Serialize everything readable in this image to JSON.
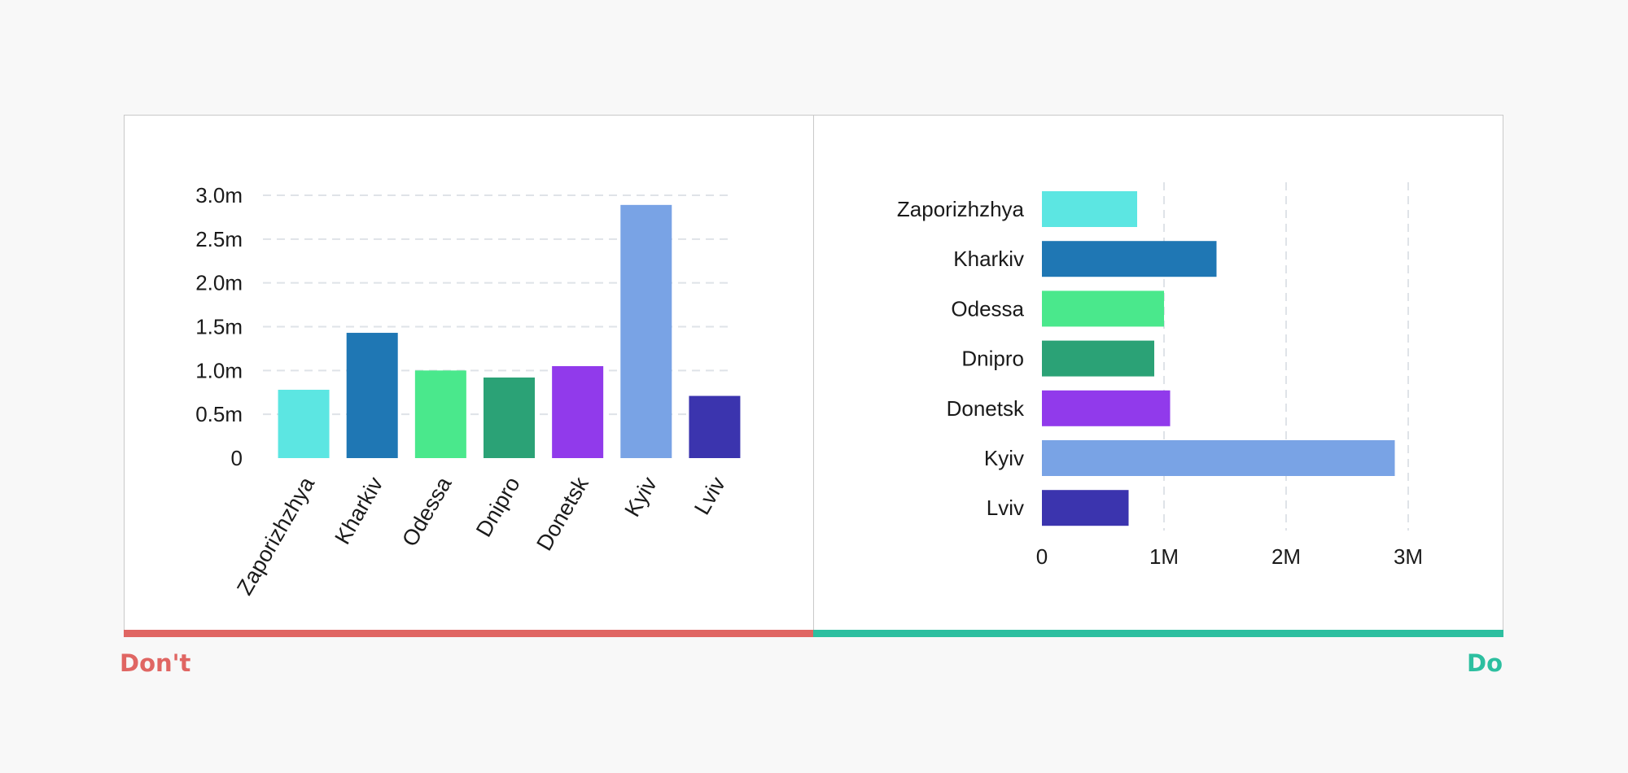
{
  "chart_data": [
    {
      "type": "bar",
      "orientation": "vertical",
      "categories": [
        "Zaporizhzhya",
        "Kharkiv",
        "Odessa",
        "Dnipro",
        "Donetsk",
        "Kyiv",
        "Lviv"
      ],
      "values": [
        0.78,
        1.43,
        1.0,
        0.92,
        1.05,
        2.89,
        0.71
      ],
      "ylim": [
        0,
        3.0
      ],
      "yticks": [
        0,
        0.5,
        1.0,
        1.5,
        2.0,
        2.5,
        3.0
      ],
      "ytick_labels": [
        "0",
        "0.5m",
        "1.0m",
        "1.5m",
        "2.0m",
        "2.5m",
        "3.0m"
      ],
      "grid": true,
      "xlabel_rotation": "-60",
      "colors": [
        "#5ce6e2",
        "#1f77b4",
        "#4ae88c",
        "#2ba276",
        "#913aeb",
        "#79a3e5",
        "#3b34ae"
      ]
    },
    {
      "type": "bar",
      "orientation": "horizontal",
      "categories": [
        "Zaporizhzhya",
        "Kharkiv",
        "Odessa",
        "Dnipro",
        "Donetsk",
        "Kyiv",
        "Lviv"
      ],
      "values": [
        0.78,
        1.43,
        1.0,
        0.92,
        1.05,
        2.89,
        0.71
      ],
      "xlim": [
        0,
        3.0
      ],
      "xticks": [
        0,
        1,
        2,
        3
      ],
      "xtick_labels": [
        "0",
        "1M",
        "2M",
        "3M"
      ],
      "grid": true,
      "colors": [
        "#5ce6e2",
        "#1f77b4",
        "#4ae88c",
        "#2ba276",
        "#913aeb",
        "#79a3e5",
        "#3b34ae"
      ]
    }
  ],
  "verdicts": {
    "dont": {
      "label": "Don't",
      "color": "#e06663"
    },
    "do": {
      "label": "Do",
      "color": "#2dbfa0"
    }
  }
}
